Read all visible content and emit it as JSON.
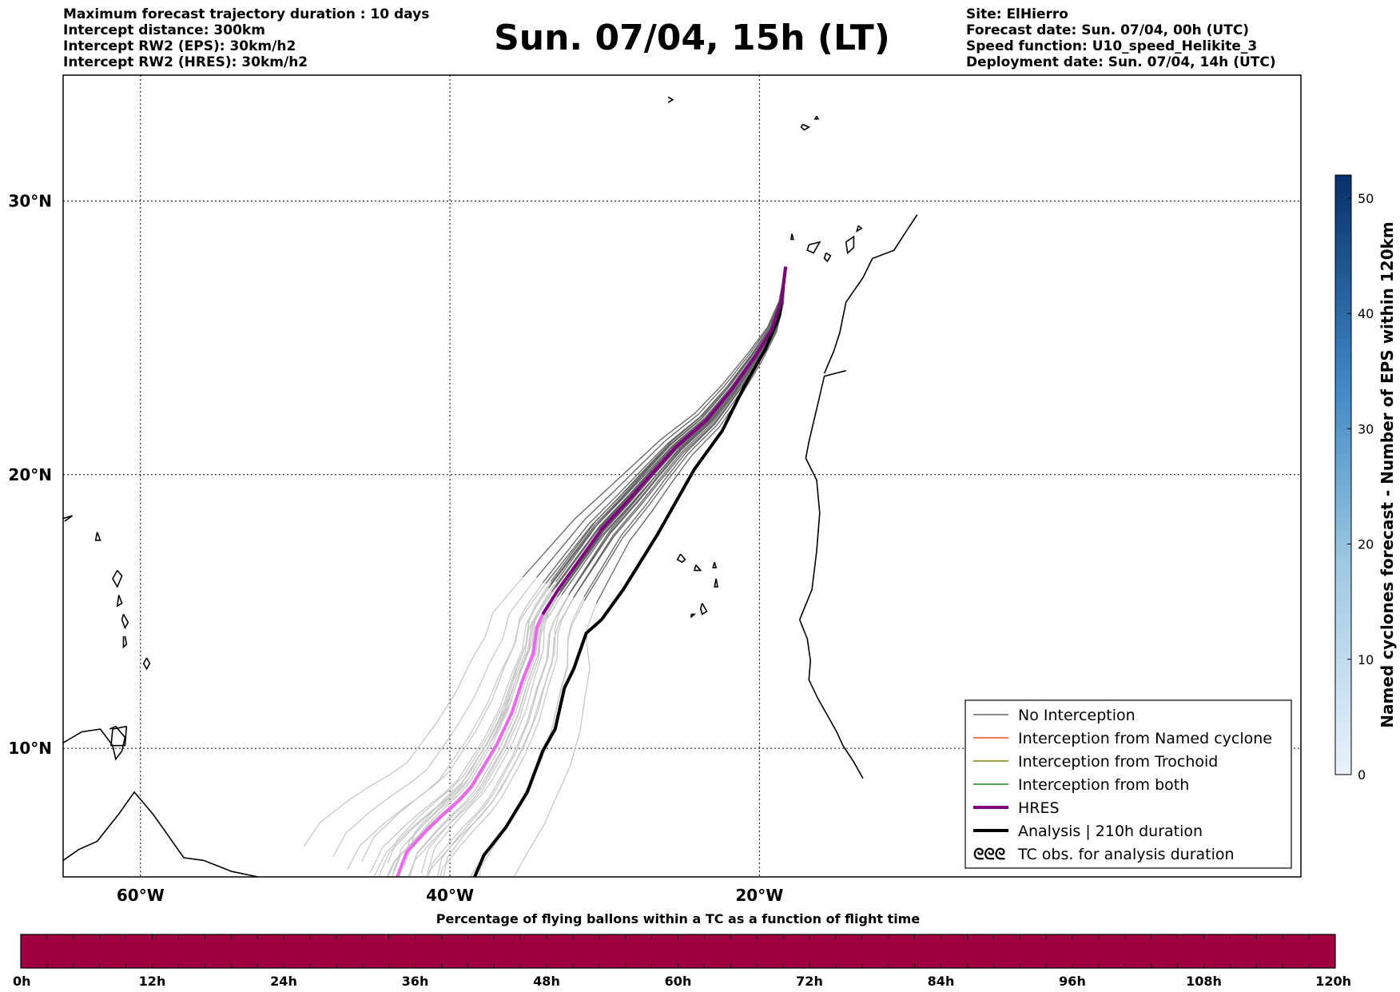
{
  "header": {
    "title": "Sun. 07/04, 15h (LT)",
    "left_lines": [
      "Maximum forecast trajectory duration : 10 days",
      "Intercept distance: 300km",
      "Intercept RW2 (EPS):  30km/h2",
      "Intercept RW2 (HRES): 30km/h2"
    ],
    "right_lines": [
      "Site: ElHierro",
      "Forecast date: Sun. 07/04, 00h (UTC)",
      "Speed function: U10_speed_Helikite_3",
      "Deployment date: Sun. 07/04, 14h (UTC)"
    ]
  },
  "map": {
    "lon_range": [
      -65,
      15
    ],
    "lat_range": [
      5.3,
      34.6
    ],
    "lon_ticks": [
      {
        "value": -60,
        "label": "60°W"
      },
      {
        "value": -40,
        "label": "40°W"
      },
      {
        "value": -20,
        "label": "20°W"
      }
    ],
    "lat_ticks": [
      {
        "value": 30,
        "label": "30°N"
      },
      {
        "value": 20,
        "label": "20°N"
      },
      {
        "value": 10,
        "label": "10°N"
      }
    ],
    "launch_site": {
      "lon": -18.3,
      "lat": 27.6
    },
    "colors": {
      "no_interception_tail": "#646464",
      "no_interception_far": "#c8c8c8",
      "hres": "#800080",
      "hres_far": "#ee66ee",
      "analysis": "#000000",
      "coast": "#000000",
      "named_cyclone": "#e8501a",
      "trochoid": "#808000",
      "both": "#228822"
    },
    "trajectories": {
      "hres": [
        [
          -18.3,
          27.6
        ],
        [
          -18.6,
          26.3
        ],
        [
          -19.2,
          25.3
        ],
        [
          -20.3,
          24.3
        ],
        [
          -21.8,
          23.1
        ],
        [
          -23.4,
          22.0
        ],
        [
          -25.4,
          21.0
        ],
        [
          -27.0,
          20.0
        ],
        [
          -28.4,
          19.1
        ],
        [
          -30.2,
          18.0
        ],
        [
          -31.6,
          16.9
        ],
        [
          -33.0,
          15.8
        ],
        [
          -34.0,
          14.9
        ],
        [
          -34.4,
          14.4
        ],
        [
          -34.6,
          13.5
        ],
        [
          -35.3,
          12.5
        ],
        [
          -36.0,
          11.3
        ],
        [
          -37.0,
          10.1
        ],
        [
          -38.6,
          8.6
        ],
        [
          -39.4,
          8.1
        ],
        [
          -40.4,
          7.6
        ],
        [
          -41.5,
          7.0
        ],
        [
          -42.8,
          6.2
        ],
        [
          -43.4,
          5.3
        ]
      ],
      "hres_split_index": 12,
      "analysis": [
        [
          -18.3,
          27.6
        ],
        [
          -18.7,
          25.8
        ],
        [
          -19.6,
          24.6
        ],
        [
          -21.0,
          23.2
        ],
        [
          -22.4,
          21.6
        ],
        [
          -24.2,
          20.2
        ],
        [
          -26.6,
          17.8
        ],
        [
          -28.8,
          15.8
        ],
        [
          -30.2,
          14.7
        ],
        [
          -31.2,
          14.2
        ],
        [
          -32.0,
          12.9
        ],
        [
          -32.6,
          12.2
        ],
        [
          -33.2,
          10.7
        ],
        [
          -34.0,
          9.9
        ],
        [
          -35.0,
          8.4
        ],
        [
          -36.4,
          7.1
        ],
        [
          -37.8,
          6.1
        ],
        [
          -38.4,
          5.3
        ]
      ],
      "ensemble_offsets": [
        -2.4,
        -2.0,
        -1.7,
        -1.4,
        -1.2,
        -1.0,
        -0.8,
        -0.6,
        -0.5,
        -0.35,
        -0.2,
        -0.1,
        0.0,
        0.1,
        0.2,
        0.3,
        0.45,
        0.6,
        0.75,
        0.9,
        1.1,
        1.3,
        1.5,
        1.8,
        2.1,
        2.5,
        -3.0,
        3.0
      ],
      "ensemble_end_shift": [
        -1.5,
        2.5,
        -0.5,
        1.8,
        0.4,
        -2.0,
        1.0,
        -1.0,
        0.2,
        2.2,
        -0.8,
        1.4,
        -0.2,
        0.6,
        -1.8,
        2.8,
        0.0,
        -1.2,
        1.6,
        -0.4,
        0.8,
        -2.5,
        1.2,
        3.2,
        -0.6,
        2.0,
        -3.2,
        4.5
      ]
    },
    "islands": [
      {
        "lon": -18.0,
        "lat": 28.1
      },
      {
        "lon": -15.6,
        "lat": 28.0
      },
      {
        "lon": -16.4,
        "lat": 28.3
      },
      {
        "lon": -14.0,
        "lat": 28.4
      },
      {
        "lon": -24.0,
        "lat": 16.8
      },
      {
        "lon": -22.9,
        "lat": 16.1
      },
      {
        "lon": -23.6,
        "lat": 15.0
      },
      {
        "lon": -24.7,
        "lat": 14.9
      },
      {
        "lon": -61.0,
        "lat": 14.6
      },
      {
        "lon": -61.2,
        "lat": 13.2
      },
      {
        "lon": -61.7,
        "lat": 16.2
      },
      {
        "lon": -61.4,
        "lat": 15.4
      },
      {
        "lon": -59.5,
        "lat": 13.1
      },
      {
        "lon": -16.9,
        "lat": 32.7
      }
    ]
  },
  "legend": {
    "items": [
      {
        "label": "No Interception",
        "style": "thin",
        "color": "#646464"
      },
      {
        "label": "Interception from Named cyclone",
        "style": "thin",
        "color": "#e8501a"
      },
      {
        "label": "Interception from Trochoid",
        "style": "thin",
        "color": "#808000"
      },
      {
        "label": "Interception from both",
        "style": "thin",
        "color": "#228822"
      },
      {
        "label": "HRES",
        "style": "thick",
        "color": "#800080"
      },
      {
        "label": "Analysis | 210h duration",
        "style": "thick",
        "color": "#000000"
      },
      {
        "label": "TC obs. for analysis duration",
        "style": "symbol",
        "color": "#000000",
        "symbol": "ᘓᘓᘓ"
      }
    ]
  },
  "colorbar_right": {
    "label": "Named cyclones forecast - Number of EPS within 120km",
    "min": 0,
    "max": 52,
    "ticks": [
      "0",
      "10",
      "20",
      "30",
      "40",
      "50"
    ],
    "tick_values": [
      0,
      10,
      20,
      30,
      40,
      50
    ],
    "color_low": "#eaf2fb",
    "color_high": "#08306b"
  },
  "colorbar_bottom": {
    "title": "Percentage of flying ballons within a TC as a function of flight time",
    "ticks": [
      "0h",
      "12h",
      "24h",
      "36h",
      "48h",
      "60h",
      "72h",
      "84h",
      "96h",
      "108h",
      "120h"
    ],
    "tick_hours": [
      0,
      12,
      24,
      36,
      48,
      60,
      72,
      84,
      96,
      108,
      120
    ],
    "fill_color": "#9e0040",
    "minor_divisions": 50
  }
}
